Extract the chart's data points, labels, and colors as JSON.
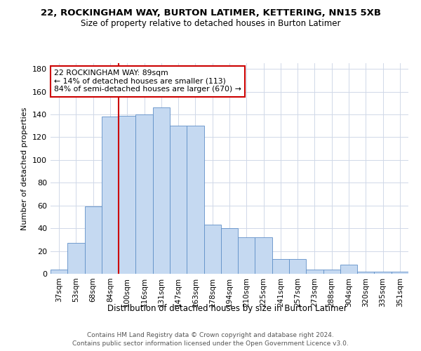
{
  "title": "22, ROCKINGHAM WAY, BURTON LATIMER, KETTERING, NN15 5XB",
  "subtitle": "Size of property relative to detached houses in Burton Latimer",
  "xlabel": "Distribution of detached houses by size in Burton Latimer",
  "ylabel": "Number of detached properties",
  "categories": [
    "37sqm",
    "53sqm",
    "68sqm",
    "84sqm",
    "100sqm",
    "116sqm",
    "131sqm",
    "147sqm",
    "163sqm",
    "178sqm",
    "194sqm",
    "210sqm",
    "225sqm",
    "241sqm",
    "257sqm",
    "273sqm",
    "288sqm",
    "304sqm",
    "320sqm",
    "335sqm",
    "351sqm"
  ],
  "values": [
    4,
    27,
    59,
    138,
    139,
    140,
    146,
    130,
    130,
    43,
    40,
    32,
    32,
    13,
    13,
    4,
    4,
    8,
    2,
    2,
    2
  ],
  "bar_color": "#c5d9f1",
  "bar_edge_color": "#6090c8",
  "vline_color": "#cc0000",
  "ylim": [
    0,
    185
  ],
  "yticks": [
    0,
    20,
    40,
    60,
    80,
    100,
    120,
    140,
    160,
    180
  ],
  "annotation_line1": "22 ROCKINGHAM WAY: 89sqm",
  "annotation_line2": "← 14% of detached houses are smaller (113)",
  "annotation_line3": "84% of semi-detached houses are larger (670) →",
  "annotation_box_color": "#cc0000",
  "footer_line1": "Contains HM Land Registry data © Crown copyright and database right 2024.",
  "footer_line2": "Contains public sector information licensed under the Open Government Licence v3.0.",
  "background_color": "#ffffff",
  "grid_color": "#d0d8e8"
}
